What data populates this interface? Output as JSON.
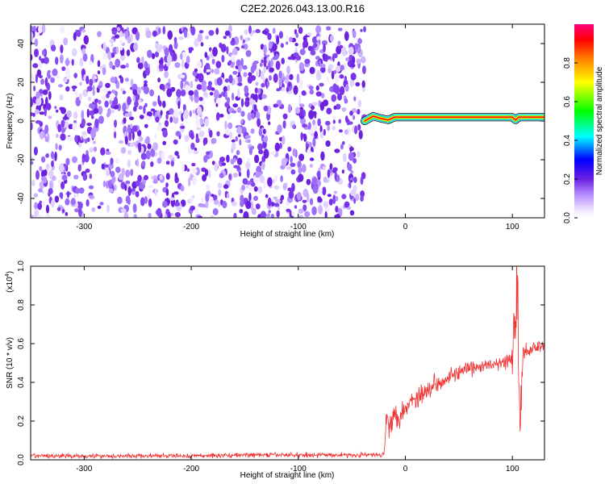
{
  "figure_title": "C2E2.2026.043.13.00.R16",
  "colors": {
    "spectrogram_noise": "#7a2fe8",
    "signal_line": "#ee3333",
    "frame": "#000000"
  },
  "chart_data": [
    {
      "type": "heatmap",
      "title": "C2E2.2026.043.13.00.R16",
      "xlabel": "Height of straight line (km)",
      "ylabel": "Frequency (Hz)",
      "xlim": [
        -350,
        130
      ],
      "ylim": [
        -50,
        50
      ],
      "x_ticks": [
        -300,
        -200,
        -100,
        0,
        100
      ],
      "x_tick_labels": [
        "-300",
        "-200",
        "-100",
        "0",
        "100"
      ],
      "y_ticks": [
        -40,
        -20,
        0,
        20,
        40
      ],
      "y_tick_labels": [
        "-40",
        "-20",
        "0",
        "20",
        "40"
      ],
      "colorbar": {
        "label": "Normalized spectral amplitude",
        "range": [
          0,
          1
        ],
        "ticks": [
          0.0,
          0.2,
          0.4,
          0.6,
          0.8
        ],
        "tick_labels": [
          "0.0",
          "0.2",
          "0.4",
          "0.6",
          "0.8"
        ],
        "colormap": "rainbow (white-violet-blue-cyan-green-yellow-red-magenta)"
      },
      "regions": [
        {
          "description": "broadband noise, low amplitude (~0.1-0.2) across all frequencies",
          "x_range": [
            -350,
            -38
          ],
          "freq_range": [
            -50,
            48
          ]
        },
        {
          "description": "narrow tone near 0-2 Hz, amplitude ~0.9",
          "x_range": [
            -38,
            130
          ],
          "freq_center": 1.5
        }
      ],
      "tone_centerline": [
        [
          -38,
          0.0
        ],
        [
          -30,
          2.5
        ],
        [
          -24,
          1.5
        ],
        [
          -16,
          0.5
        ],
        [
          -10,
          2.0
        ],
        [
          100,
          2.0
        ],
        [
          103,
          0.5
        ],
        [
          106,
          2.0
        ],
        [
          130,
          2.0
        ]
      ],
      "grid": false
    },
    {
      "type": "line",
      "xlabel": "Height of straight line (km)",
      "ylabel": "SNR (10 * v/v)",
      "y_scale_label": "(x10",
      "y_scale_exponent": "4",
      "y_scale_suffix": ")",
      "xlim": [
        -350,
        130
      ],
      "ylim": [
        0.0,
        1.0
      ],
      "x_ticks": [
        -300,
        -200,
        -100,
        0,
        100
      ],
      "x_tick_labels": [
        "-300",
        "-200",
        "-100",
        "0",
        "100"
      ],
      "y_ticks": [
        0.0,
        0.2,
        0.4,
        0.6,
        0.8,
        1.0
      ],
      "y_tick_labels": [
        "0.0",
        "0.2",
        "0.4",
        "0.6",
        "0.8",
        "1.0"
      ],
      "series": [
        {
          "color": "#ee3333",
          "x": [
            -350,
            -300,
            -250,
            -200,
            -150,
            -100,
            -50,
            -25,
            -20,
            -18,
            -15,
            -10,
            -5,
            0,
            5,
            10,
            20,
            30,
            40,
            50,
            60,
            70,
            80,
            90,
            95,
            100,
            103,
            105,
            107,
            110,
            115,
            120,
            125,
            130
          ],
          "y": [
            0.02,
            0.02,
            0.02,
            0.02,
            0.025,
            0.025,
            0.025,
            0.025,
            0.03,
            0.2,
            0.21,
            0.22,
            0.24,
            0.27,
            0.3,
            0.32,
            0.36,
            0.4,
            0.43,
            0.45,
            0.47,
            0.48,
            0.49,
            0.5,
            0.5,
            0.52,
            0.75,
            0.95,
            0.1,
            0.55,
            0.57,
            0.58,
            0.59,
            0.6
          ],
          "noise_amplitude": [
            0.01,
            0.01,
            0.01,
            0.01,
            0.01,
            0.01,
            0.01,
            0.01,
            0.01,
            0.06,
            0.07,
            0.06,
            0.06,
            0.05,
            0.05,
            0.05,
            0.04,
            0.04,
            0.04,
            0.03,
            0.03,
            0.03,
            0.03,
            0.03,
            0.05,
            0.08,
            0.2,
            0.3,
            0.2,
            0.05,
            0.03,
            0.03,
            0.03,
            0.03
          ]
        }
      ],
      "grid": false
    }
  ]
}
